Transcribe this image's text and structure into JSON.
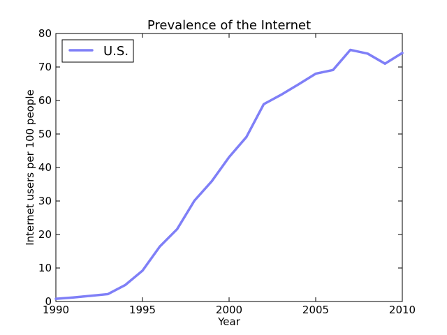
{
  "chart_data": {
    "type": "line",
    "title": "Prevalence of the Internet",
    "xlabel": "Year",
    "ylabel": "Internet users per 100 people",
    "xlim": [
      1990,
      2010
    ],
    "ylim": [
      0,
      80
    ],
    "xticks": [
      1990,
      1995,
      2000,
      2005,
      2010
    ],
    "yticks": [
      0,
      10,
      20,
      30,
      40,
      50,
      60,
      70,
      80
    ],
    "grid": false,
    "legend_position": "top-left",
    "series": [
      {
        "name": "U.S.",
        "color": "#7f7ff7",
        "x": [
          1990,
          1991,
          1992,
          1993,
          1994,
          1995,
          1996,
          1997,
          1998,
          1999,
          2000,
          2001,
          2002,
          2003,
          2004,
          2005,
          2006,
          2007,
          2008,
          2009,
          2010
        ],
        "y": [
          0.8,
          1.2,
          1.7,
          2.2,
          4.9,
          9.2,
          16.4,
          21.6,
          30.1,
          35.9,
          43.1,
          49.1,
          58.9,
          61.7,
          64.8,
          68.0,
          69.1,
          75.1,
          74.0,
          71.0,
          74.2
        ]
      }
    ]
  }
}
